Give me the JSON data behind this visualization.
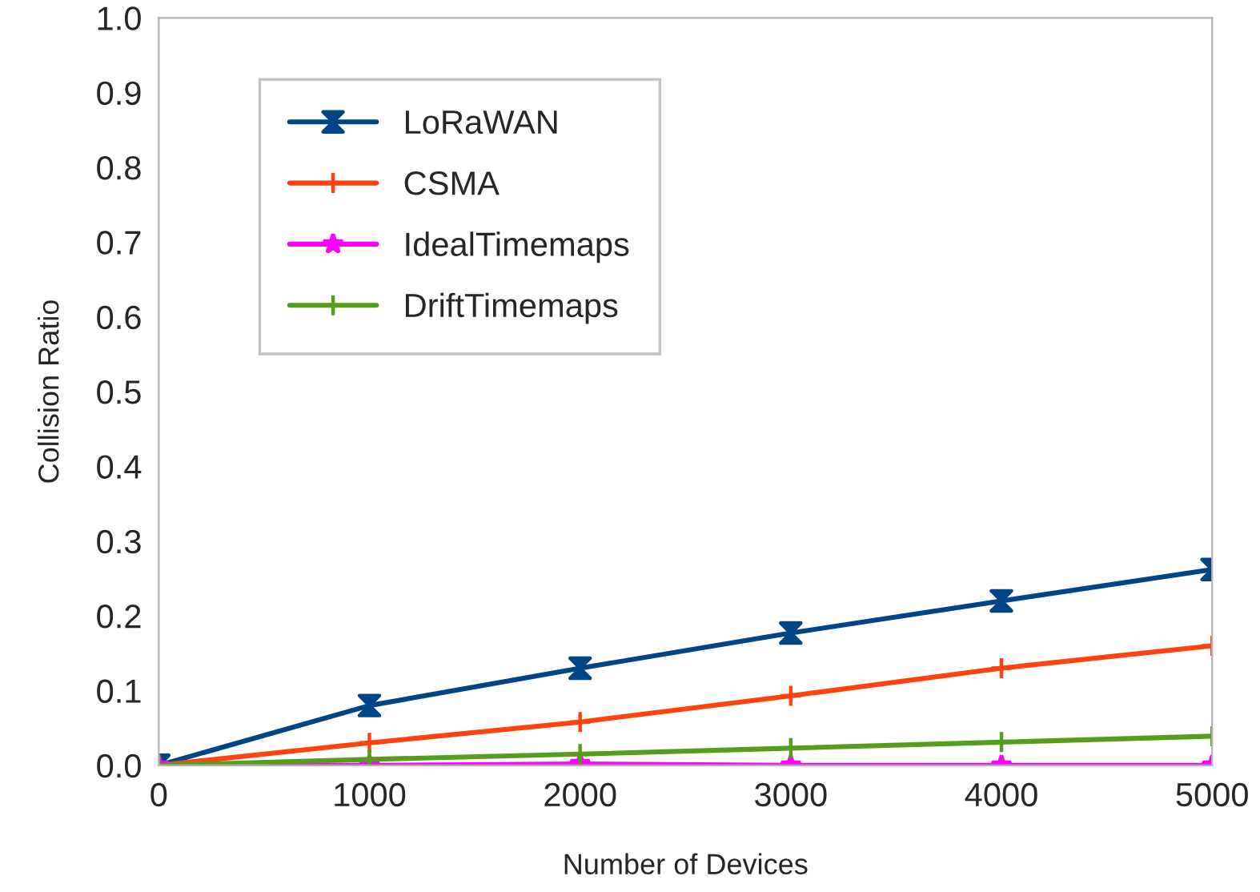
{
  "chart_data": {
    "type": "line",
    "xlabel": "Number of Devices",
    "ylabel": "Collision Ratio",
    "x": [
      0,
      1000,
      2000,
      3000,
      4000,
      5000
    ],
    "series": [
      {
        "name": "LoRaWAN",
        "color": "#004586",
        "marker": "diamond",
        "values": [
          0,
          0.08,
          0.13,
          0.177,
          0.22,
          0.262
        ]
      },
      {
        "name": "CSMA",
        "color": "#ff420e",
        "marker": "cross",
        "values": [
          0,
          0.03,
          0.058,
          0.093,
          0.13,
          0.16
        ]
      },
      {
        "name": "IdealTimemaps",
        "color": "#ff00ff",
        "marker": "star",
        "values": [
          0,
          0,
          0.002,
          0,
          0,
          0
        ]
      },
      {
        "name": "DriftTimemaps",
        "color": "#579d1c",
        "marker": "cross",
        "values": [
          0,
          0.008,
          0.015,
          0.023,
          0.031,
          0.039
        ]
      }
    ],
    "xlim": [
      0,
      5000
    ],
    "xticks": [
      0,
      1000,
      2000,
      3000,
      4000,
      5000
    ],
    "ylim": [
      0,
      1.0
    ],
    "yticks": [
      {
        "value": 0,
        "label": "0.0"
      },
      0.1,
      0.2,
      0.3,
      0.4,
      0.5,
      0.6,
      0.7,
      0.8,
      0.9,
      {
        "value": 1.0,
        "label": "1.0"
      }
    ],
    "grid": false,
    "legend": "top left",
    "line_style": "solid"
  }
}
